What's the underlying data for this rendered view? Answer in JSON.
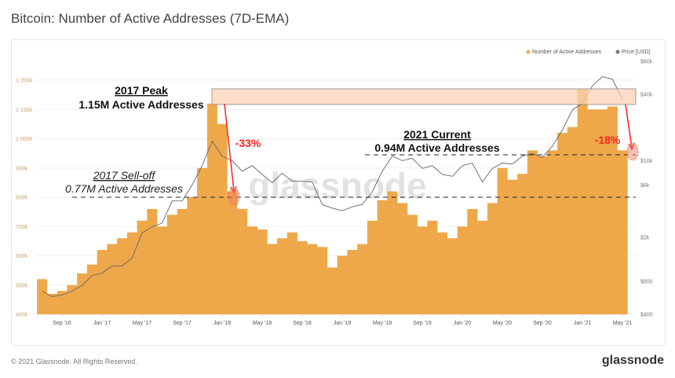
{
  "title": "Bitcoin: Number of Active Addresses (7D-EMA)",
  "footer": "© 2021 Glassnode. All Rights Reserved.",
  "brand": "glassnode",
  "watermark": "glassnode",
  "colors": {
    "bars": "#eea84a",
    "price": "#777777",
    "highlight": "#fbd3b6",
    "annotation_red": "#ff2020"
  },
  "chart_data": {
    "type": "bar",
    "legend": [
      "Number of Active Addresses",
      "Price [USD]"
    ],
    "legend_position": "top-right",
    "x_ticks": [
      "Sep '16",
      "Jan '17",
      "May '17",
      "Sep '17",
      "Jan '18",
      "May '18",
      "Sep '18",
      "Jan '19",
      "May '19",
      "Sep '19",
      "Jan '20",
      "May '20",
      "Sep '20",
      "Jan '21",
      "May '21"
    ],
    "y_left_ticks": [
      "400k",
      "500k",
      "600k",
      "700k",
      "800k",
      "900k",
      "1 000k",
      "1 100k",
      "1 200k"
    ],
    "y_left_range": [
      400000,
      1200000
    ],
    "y_right_ticks": [
      "$400",
      "$800",
      "$2k",
      "$6k",
      "$10k",
      "$40k",
      "$80k"
    ],
    "y_right_range": [
      400,
      80000
    ],
    "y_right_scale": "log",
    "x": [
      "2016-07",
      "2016-08",
      "2016-09",
      "2016-10",
      "2016-11",
      "2016-12",
      "2017-01",
      "2017-02",
      "2017-03",
      "2017-04",
      "2017-05",
      "2017-06",
      "2017-07",
      "2017-08",
      "2017-09",
      "2017-10",
      "2017-11",
      "2017-12",
      "2018-01",
      "2018-02",
      "2018-03",
      "2018-04",
      "2018-05",
      "2018-06",
      "2018-07",
      "2018-08",
      "2018-09",
      "2018-10",
      "2018-11",
      "2018-12",
      "2019-01",
      "2019-02",
      "2019-03",
      "2019-04",
      "2019-05",
      "2019-06",
      "2019-07",
      "2019-08",
      "2019-09",
      "2019-10",
      "2019-11",
      "2019-12",
      "2020-01",
      "2020-02",
      "2020-03",
      "2020-04",
      "2020-05",
      "2020-06",
      "2020-07",
      "2020-08",
      "2020-09",
      "2020-10",
      "2020-11",
      "2020-12",
      "2021-01",
      "2021-02",
      "2021-03",
      "2021-04",
      "2021-05"
    ],
    "series": [
      {
        "name": "Number of Active Addresses",
        "values": [
          520000,
          470000,
          480000,
          500000,
          540000,
          570000,
          620000,
          640000,
          660000,
          680000,
          720000,
          760000,
          700000,
          740000,
          760000,
          800000,
          900000,
          1120000,
          1050000,
          820000,
          760000,
          700000,
          690000,
          640000,
          660000,
          680000,
          650000,
          640000,
          630000,
          560000,
          600000,
          620000,
          640000,
          720000,
          790000,
          820000,
          780000,
          740000,
          700000,
          720000,
          680000,
          660000,
          700000,
          760000,
          720000,
          780000,
          900000,
          860000,
          880000,
          960000,
          940000,
          960000,
          1020000,
          1040000,
          1170000,
          1100000,
          1100000,
          1110000,
          960000
        ]
      },
      {
        "name": "Price [USD]",
        "values": [
          650,
          580,
          600,
          650,
          730,
          900,
          950,
          1100,
          1100,
          1300,
          2200,
          2500,
          2700,
          4300,
          4300,
          6000,
          9000,
          15000,
          11000,
          10000,
          8000,
          9000,
          7500,
          6300,
          7700,
          6500,
          6500,
          6400,
          4000,
          3700,
          3500,
          3800,
          4000,
          5200,
          8000,
          11000,
          10000,
          10500,
          8500,
          9000,
          7500,
          7200,
          9000,
          9500,
          6400,
          8500,
          9500,
          9300,
          11000,
          11600,
          10700,
          13500,
          19000,
          29000,
          33000,
          48000,
          58000,
          55000,
          36000
        ]
      }
    ],
    "annotations": {
      "peak_title": "2017 Peak",
      "peak_value": "1.15M Active Addresses",
      "selloff_title": "2017 Sell-off",
      "selloff_value": "0.77M Active Addresses",
      "current_title": "2021 Current",
      "current_value": "0.94M Active Addresses",
      "drop_2018": "-33%",
      "drop_2021": "-18%"
    }
  }
}
